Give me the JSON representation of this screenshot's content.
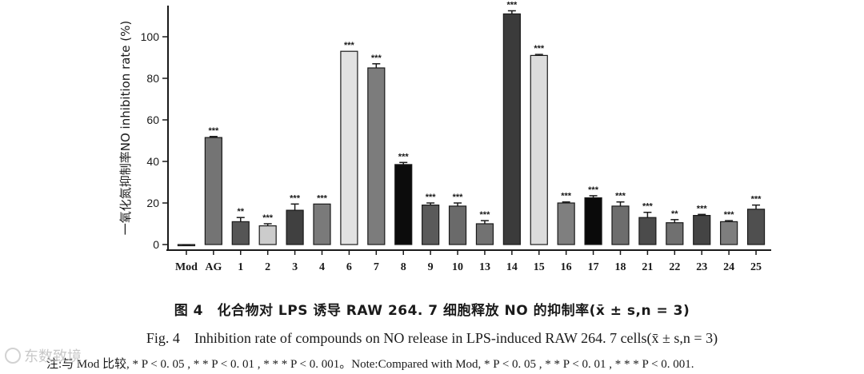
{
  "chart_data": {
    "type": "bar",
    "ylabel": "一氧化氮抑制率NO inhibition rate (%)",
    "xlabel": "",
    "ylim": [
      -3,
      115
    ],
    "yticks": [
      0,
      20,
      40,
      60,
      80,
      100
    ],
    "categories": [
      "Mod",
      "AG",
      "1",
      "2",
      "3",
      "4",
      "6",
      "7",
      "8",
      "9",
      "10",
      "13",
      "14",
      "15",
      "16",
      "17",
      "18",
      "21",
      "22",
      "23",
      "24",
      "25"
    ],
    "values": [
      -0.5,
      51.5,
      11,
      9,
      16.5,
      19.5,
      93,
      85,
      38.5,
      19,
      18.5,
      10,
      111,
      91,
      20,
      22.5,
      18.5,
      13,
      10.5,
      14,
      11,
      17
    ],
    "errors": [
      0.3,
      0.5,
      2,
      1,
      3,
      0,
      0,
      2,
      1,
      1,
      1.5,
      1.5,
      1.5,
      0.5,
      0.5,
      1,
      2,
      2.5,
      1.5,
      0.5,
      0.5,
      2
    ],
    "significance": [
      "",
      "***",
      "**",
      "***",
      "***",
      "***",
      "***",
      "***",
      "***",
      "***",
      "***",
      "***",
      "***",
      "***",
      "***",
      "***",
      "***",
      "***",
      "**",
      "***",
      "***",
      "***"
    ],
    "bar_colors": [
      "#6b6b6b",
      "#747474",
      "#555555",
      "#cccccc",
      "#404040",
      "#7a7a7a",
      "#e2e2e2",
      "#7c7c7c",
      "#0c0c0c",
      "#5a5a5a",
      "#6a6a6a",
      "#727272",
      "#3b3b3b",
      "#dcdcdc",
      "#7f7f7f",
      "#0a0a0a",
      "#6d6d6d",
      "#4b4b4b",
      "#707070",
      "#444444",
      "#7e7e7e",
      "#4f4f4f"
    ],
    "grid": false,
    "legend": "none"
  },
  "captions": {
    "zh": "图 4　化合物对 LPS 诱导 RAW 264. 7 细胞释放 NO 的抑制率(x̄ ± s,n = 3)",
    "en": "Fig. 4　Inhibition rate of compounds on NO release in LPS-induced RAW 264. 7 cells(x̄ ± s,n = 3)",
    "note": "注:与 Mod 比较, * P < 0. 05 , * * P < 0. 01 , * * * P < 0. 001。Note:Compared with Mod, * P < 0. 05 , * * P < 0. 01 , * * * P < 0. 001."
  },
  "watermark": "东数致境"
}
